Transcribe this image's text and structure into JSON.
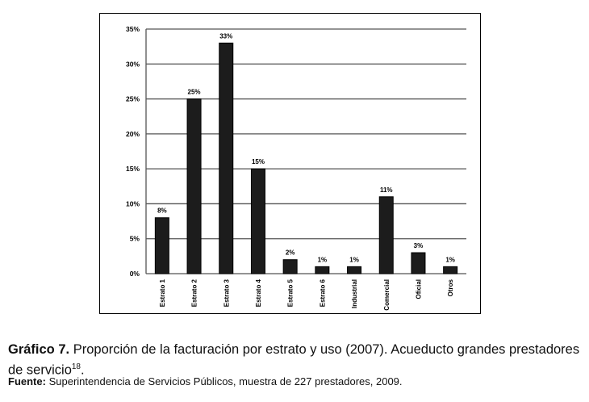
{
  "chart_data": {
    "type": "bar",
    "categories": [
      "Estrato 1",
      "Estrato 2",
      "Estrato 3",
      "Estrato 4",
      "Estrato 5",
      "Estrato 6",
      "Industrial",
      "Comercial",
      "Oficial",
      "Otros"
    ],
    "values": [
      8,
      25,
      33,
      15,
      2,
      1,
      1,
      11,
      3,
      1
    ],
    "value_labels": [
      "8%",
      "25%",
      "33%",
      "15%",
      "2%",
      "1%",
      "1%",
      "11%",
      "3%",
      "1%"
    ],
    "color": "#1c1c1c",
    "ylim": [
      0,
      35
    ],
    "yticks": [
      {
        "value": 0,
        "label": "0%"
      },
      {
        "value": 5,
        "label": "5%"
      },
      {
        "value": 10,
        "label": "10%"
      },
      {
        "value": 15,
        "label": "15%"
      },
      {
        "value": 20,
        "label": "20%"
      },
      {
        "value": 25,
        "label": "25%"
      },
      {
        "value": 30,
        "label": "30%"
      },
      {
        "value": 35,
        "label": "35%"
      }
    ],
    "grid": true
  },
  "caption": {
    "label": "Gráfico 7.",
    "text": "Proporción de la facturación por estrato y uso (2007). Acueducto grandes prestadores de servicio",
    "note": "18",
    "end": "."
  },
  "source": {
    "label": "Fuente:",
    "text": "Superintendencia de Servicios Públicos, muestra de 227 prestadores, 2009."
  }
}
